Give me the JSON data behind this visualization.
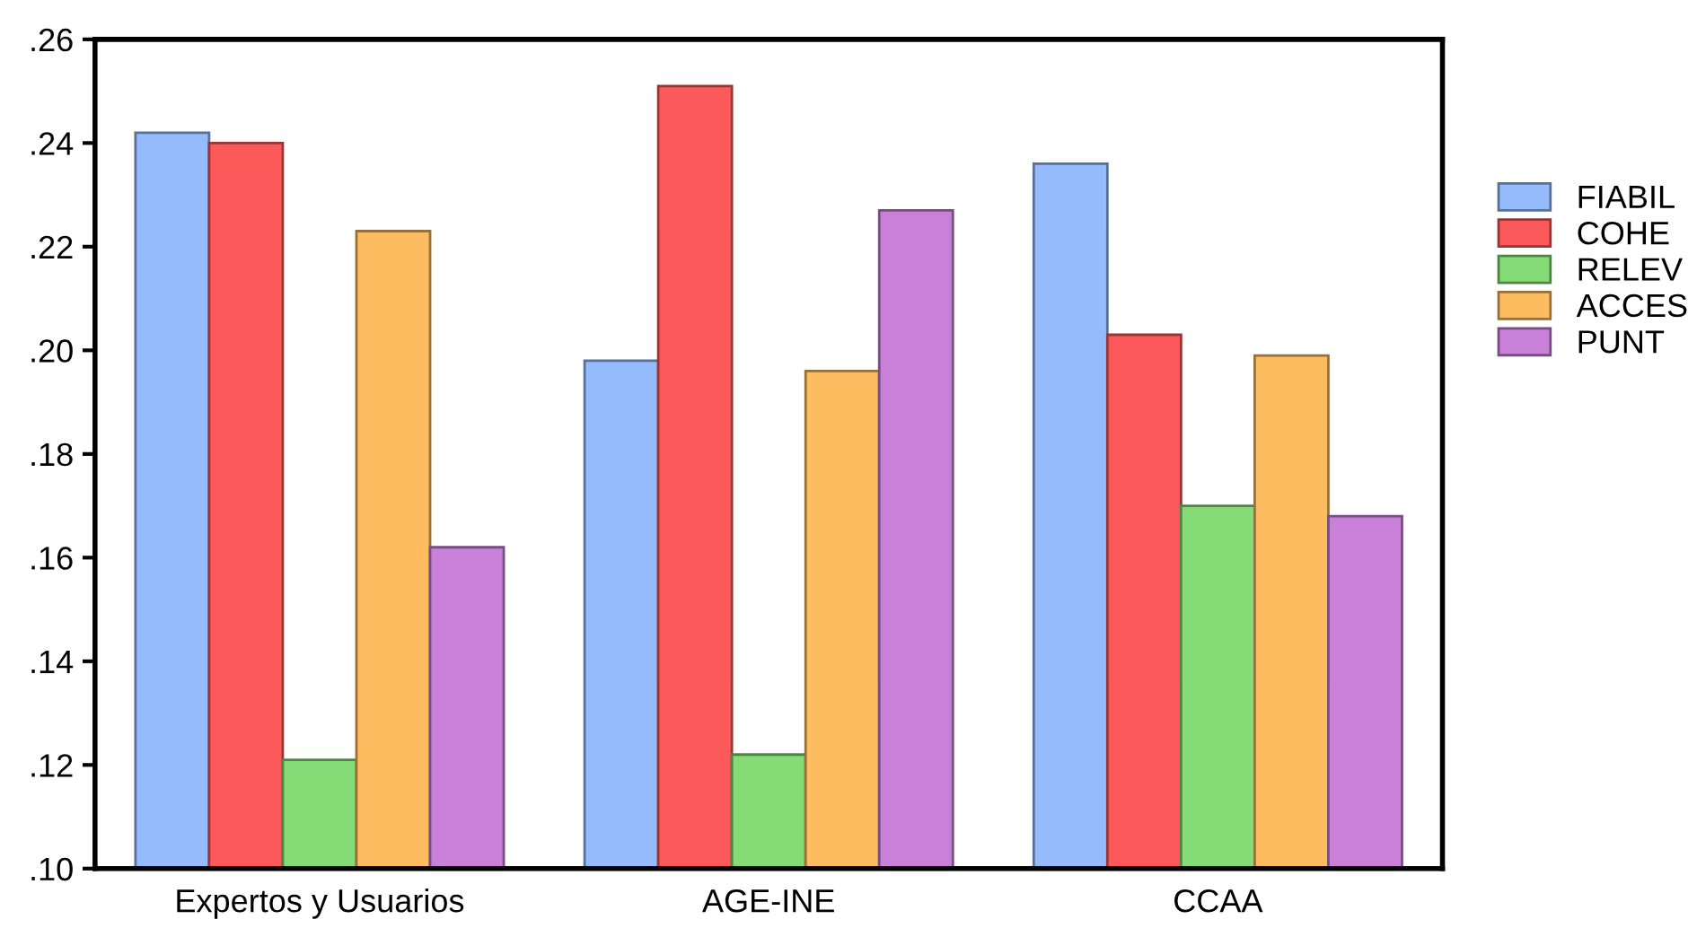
{
  "chart_data": {
    "type": "bar",
    "categories": [
      "Expertos y Usuarios",
      "AGE-INE",
      "CCAA"
    ],
    "series": [
      {
        "name": "FIABIL",
        "color": "#95bbfc",
        "values": [
          0.242,
          0.198,
          0.236
        ]
      },
      {
        "name": "COHE",
        "color": "#fc5a5a",
        "values": [
          0.24,
          0.251,
          0.203
        ]
      },
      {
        "name": "RELEV",
        "color": "#85db75",
        "values": [
          0.121,
          0.122,
          0.17
        ]
      },
      {
        "name": "ACCES",
        "color": "#fdbc5f",
        "values": [
          0.223,
          0.196,
          0.199
        ]
      },
      {
        "name": "PUNT",
        "color": "#c880d8",
        "values": [
          0.162,
          0.227,
          0.168
        ]
      }
    ],
    "ylim": [
      0.1,
      0.26
    ],
    "yticks": [
      {
        "value": 0.1,
        "label": ".10"
      },
      {
        "value": 0.12,
        "label": ".12"
      },
      {
        "value": 0.14,
        "label": ".14"
      },
      {
        "value": 0.16,
        "label": ".16"
      },
      {
        "value": 0.18,
        "label": ".18"
      },
      {
        "value": 0.2,
        "label": ".20"
      },
      {
        "value": 0.22,
        "label": ".22"
      },
      {
        "value": 0.24,
        "label": ".24"
      },
      {
        "value": 0.26,
        "label": ".26"
      }
    ],
    "grid": false,
    "legend": "right"
  }
}
